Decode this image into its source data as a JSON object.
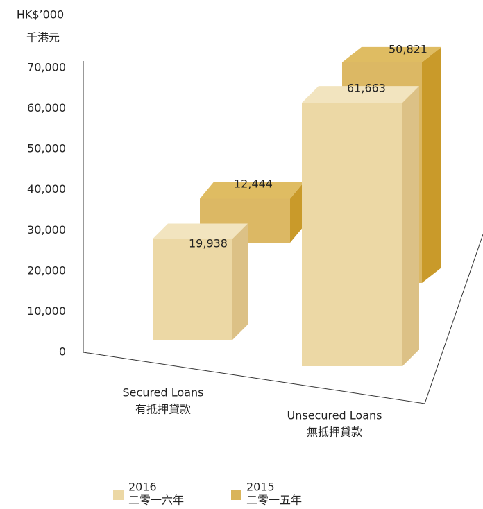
{
  "chart_data": {
    "type": "bar3d",
    "y_title": "HK$’000",
    "y_title_zh": "千港元",
    "categories": [
      "Secured Loans",
      "Unsecured Loans"
    ],
    "categories_zh": [
      "有抵押貸款",
      "無抵押貸款"
    ],
    "series": [
      {
        "name": "2016",
        "name_zh": "二零一六年",
        "color": "#ecd8a5",
        "values": [
          19938,
          61663
        ],
        "value_labels": [
          "19,938",
          "61,663"
        ]
      },
      {
        "name": "2015",
        "name_zh": "二零一五年",
        "color": "#d9b45a",
        "values": [
          12444,
          50821
        ],
        "value_labels": [
          "12,444",
          "50,821"
        ]
      }
    ],
    "ylim": [
      0,
      70000
    ],
    "yticks": [
      0,
      {
        "value": 10000,
        "label": "10,000"
      },
      {
        "value": 20000,
        "label": "20,000"
      },
      {
        "value": 30000,
        "label": "30,000"
      },
      {
        "value": 40000,
        "label": "40,000"
      },
      {
        "value": 50000,
        "label": "50,000"
      },
      {
        "value": 60000,
        "label": "60,000"
      },
      {
        "value": 70000,
        "label": "70,000"
      }
    ],
    "grid": false
  }
}
